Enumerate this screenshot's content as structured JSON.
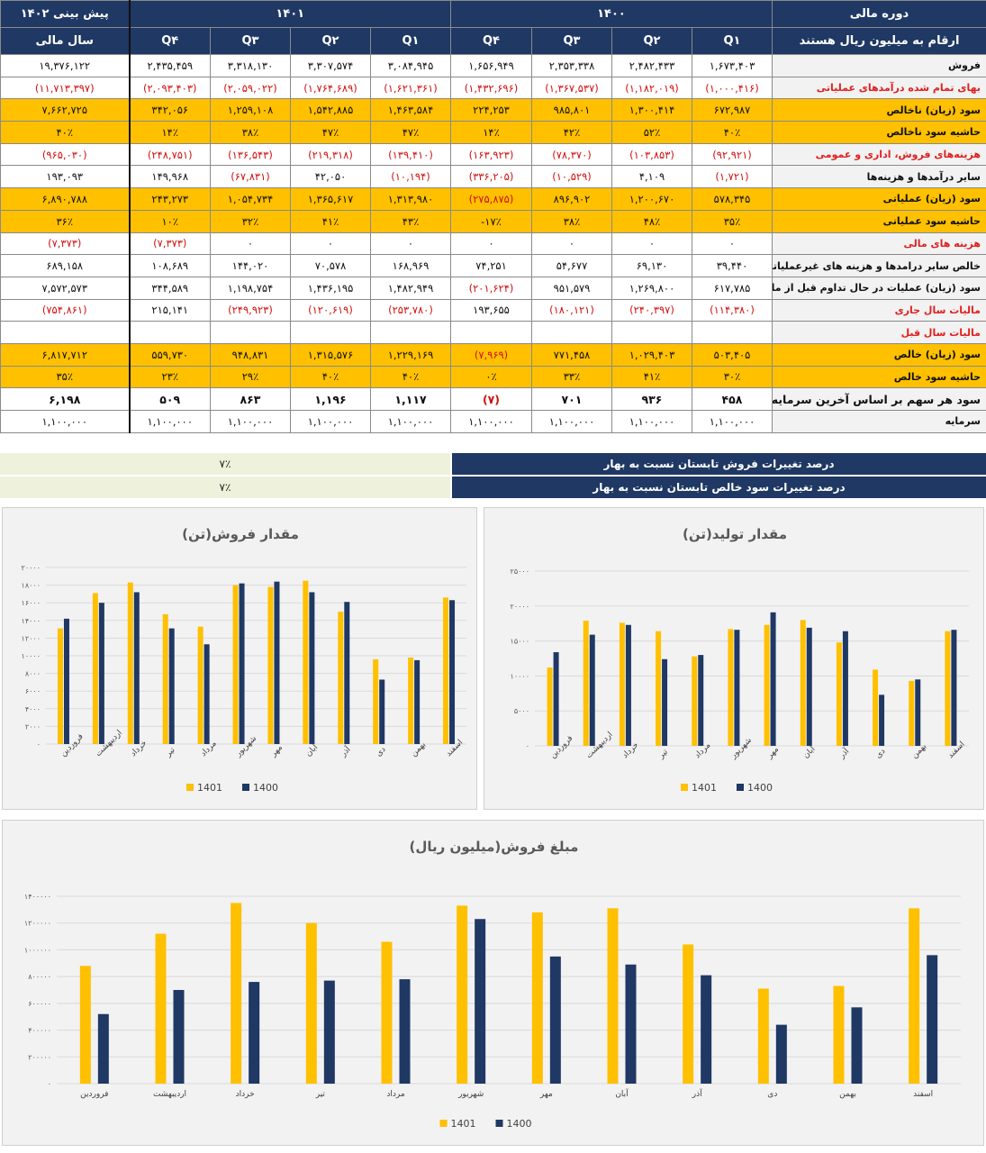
{
  "table": {
    "header_row1": [
      "پیش بینی ۱۴۰۲",
      "۱۴۰۱",
      "۱۴۰۰",
      "دوره مالی"
    ],
    "header_row2": [
      "سال مالی",
      "Q۴",
      "Q۳",
      "Q۲",
      "Q۱",
      "Q۴",
      "Q۳",
      "Q۲",
      "Q۱",
      "ارقام به میلیون ریال هستند"
    ],
    "rows": [
      {
        "label": "فروش",
        "style": "",
        "cells": [
          "۱۹,۳۷۶,۱۲۲",
          "۲,۴۳۵,۴۵۹",
          "۳,۳۱۸,۱۳۰",
          "۳,۳۰۷,۵۷۴",
          "۳,۰۸۴,۹۴۵",
          "۱,۶۵۶,۹۴۹",
          "۲,۳۵۳,۳۳۸",
          "۲,۴۸۲,۴۳۳",
          "۱,۶۷۳,۴۰۳"
        ]
      },
      {
        "label": "بهای تمام شده درآمدهای عملیاتی",
        "style": "redlab",
        "cells": [
          "(۱۱,۷۱۳,۳۹۷)",
          "(۲,۰۹۳,۴۰۳)",
          "(۲,۰۵۹,۰۲۲)",
          "(۱,۷۶۴,۶۸۹)",
          "(۱,۶۲۱,۳۶۱)",
          "(۱,۴۳۲,۶۹۶)",
          "(۱,۳۶۷,۵۳۷)",
          "(۱,۱۸۲,۰۱۹)",
          "(۱,۰۰۰,۴۱۶)"
        ]
      },
      {
        "label": "سود (زیان) ناخالص",
        "style": "gold",
        "cells": [
          "۷,۶۶۲,۷۲۵",
          "۳۴۲,۰۵۶",
          "۱,۲۵۹,۱۰۸",
          "۱,۵۴۲,۸۸۵",
          "۱,۴۶۳,۵۸۴",
          "۲۲۴,۲۵۳",
          "۹۸۵,۸۰۱",
          "۱,۳۰۰,۴۱۴",
          "۶۷۲,۹۸۷"
        ]
      },
      {
        "label": "حاشیه سود ناخالص",
        "style": "gold",
        "cells": [
          "۴۰٪",
          "۱۴٪",
          "۳۸٪",
          "۴۷٪",
          "۴۷٪",
          "۱۴٪",
          "۴۲٪",
          "۵۲٪",
          "۴۰٪"
        ]
      },
      {
        "label": "هزینه‌های فروش، اداری و عمومی",
        "style": "redlab",
        "cells": [
          "(۹۶۵,۰۳۰)",
          "(۲۴۸,۷۵۱)",
          "(۱۳۶,۵۴۳)",
          "(۲۱۹,۳۱۸)",
          "(۱۳۹,۴۱۰)",
          "(۱۶۳,۹۲۳)",
          "(۷۸,۳۷۰)",
          "(۱۰۳,۸۵۳)",
          "(۹۲,۹۲۱)"
        ]
      },
      {
        "label": "سایر درآمدها و هزینه‌ها",
        "style": "",
        "cells": [
          "۱۹۳,۰۹۳",
          "۱۴۹,۹۶۸",
          "(۶۷,۸۳۱)",
          "۴۲,۰۵۰",
          "(۱۰,۱۹۴)",
          "(۳۳۶,۲۰۵)",
          "(۱۰,۵۲۹)",
          "۴,۱۰۹",
          "(۱,۷۲۱)"
        ]
      },
      {
        "label": "سود (زیان) عملیاتی",
        "style": "gold",
        "cells": [
          "۶,۸۹۰,۷۸۸",
          "۲۴۳,۲۷۳",
          "۱,۰۵۴,۷۳۴",
          "۱,۳۶۵,۶۱۷",
          "۱,۳۱۳,۹۸۰",
          "(۲۷۵,۸۷۵)",
          "۸۹۶,۹۰۲",
          "۱,۲۰۰,۶۷۰",
          "۵۷۸,۳۴۵"
        ]
      },
      {
        "label": "حاشیه سود عملیاتی",
        "style": "gold",
        "cells": [
          "۳۶٪",
          "۱۰٪",
          "۳۲٪",
          "۴۱٪",
          "۴۳٪",
          "-۱۷٪",
          "۳۸٪",
          "۴۸٪",
          "۳۵٪"
        ]
      },
      {
        "label": "هزینه های مالی",
        "style": "redlab",
        "cells": [
          "(۷,۳۷۳)",
          "(۷,۳۷۳)",
          "۰",
          "۰",
          "۰",
          "۰",
          "۰",
          "۰",
          "۰"
        ]
      },
      {
        "label": "خالص سایر درامدها و هزینه های غیرعملیاتی",
        "style": "",
        "cells": [
          "۶۸۹,۱۵۸",
          "۱۰۸,۶۸۹",
          "۱۴۴,۰۲۰",
          "۷۰,۵۷۸",
          "۱۶۸,۹۶۹",
          "۷۴,۲۵۱",
          "۵۴,۶۷۷",
          "۶۹,۱۳۰",
          "۳۹,۴۴۰"
        ]
      },
      {
        "label": "سود (زیان) عملیات در حال تداوم قبل از مالیات",
        "style": "",
        "cells": [
          "۷,۵۷۲,۵۷۳",
          "۳۴۴,۵۸۹",
          "۱,۱۹۸,۷۵۴",
          "۱,۴۳۶,۱۹۵",
          "۱,۴۸۲,۹۴۹",
          "(۲۰۱,۶۲۴)",
          "۹۵۱,۵۷۹",
          "۱,۲۶۹,۸۰۰",
          "۶۱۷,۷۸۵"
        ]
      },
      {
        "label": "مالیات سال جاری",
        "style": "redlab",
        "cells": [
          "(۷۵۴,۸۶۱)",
          "۲۱۵,۱۴۱",
          "(۲۴۹,۹۲۳)",
          "(۱۲۰,۶۱۹)",
          "(۲۵۳,۷۸۰)",
          "۱۹۳,۶۵۵",
          "(۱۸۰,۱۲۱)",
          "(۲۴۰,۳۹۷)",
          "(۱۱۴,۳۸۰)"
        ]
      },
      {
        "label": "مالیات سال قبل",
        "style": "redlab",
        "cells": [
          "",
          "",
          "",
          "",
          "",
          "",
          "",
          "",
          ""
        ]
      },
      {
        "label": "سود (زیان) خالص",
        "style": "gold",
        "cells": [
          "۶,۸۱۷,۷۱۲",
          "۵۵۹,۷۳۰",
          "۹۴۸,۸۳۱",
          "۱,۳۱۵,۵۷۶",
          "۱,۲۲۹,۱۶۹",
          "(۷,۹۶۹)",
          "۷۷۱,۴۵۸",
          "۱,۰۲۹,۴۰۳",
          "۵۰۳,۴۰۵"
        ]
      },
      {
        "label": "حاشیه سود خالص",
        "style": "gold",
        "cells": [
          "۳۵٪",
          "۲۳٪",
          "۲۹٪",
          "۴۰٪",
          "۴۰٪",
          "۰٪",
          "۳۳٪",
          "۴۱٪",
          "۳۰٪"
        ]
      },
      {
        "label": "سود هر سهم بر اساس آخرین سرمایه",
        "style": "bold",
        "cells": [
          "۶,۱۹۸",
          "۵۰۹",
          "۸۶۳",
          "۱,۱۹۶",
          "۱,۱۱۷",
          "(۷)",
          "۷۰۱",
          "۹۳۶",
          "۴۵۸"
        ]
      },
      {
        "label": "سرمایه",
        "style": "",
        "cells": [
          "۱,۱۰۰,۰۰۰",
          "۱,۱۰۰,۰۰۰",
          "۱,۱۰۰,۰۰۰",
          "۱,۱۰۰,۰۰۰",
          "۱,۱۰۰,۰۰۰",
          "۱,۱۰۰,۰۰۰",
          "۱,۱۰۰,۰۰۰",
          "۱,۱۰۰,۰۰۰",
          "۱,۱۰۰,۰۰۰"
        ]
      }
    ]
  },
  "changes": [
    {
      "label": "درصد تغییرات فروش تابستان نسبت به بهار",
      "value": "۷٪"
    },
    {
      "label": "درصد تغییرات سود خالص تابستان نسبت به بهار",
      "value": "۷٪"
    }
  ],
  "colors": {
    "series_1401": "#ffc000",
    "series_1400": "#1f3864",
    "header": "#1f3864",
    "highlight": "#ffc000",
    "negative": "#d01010"
  },
  "chart_data": [
    {
      "id": "sales_qty",
      "type": "bar",
      "title": "مقدار فروش(تن)",
      "categories": [
        "فروردین",
        "اردیبهشت",
        "خرداد",
        "تیر",
        "مرداد",
        "شهریور",
        "مهر",
        "آبان",
        "آذر",
        "دی",
        "بهمن",
        "اسفند"
      ],
      "series": [
        {
          "name": "1401",
          "values": [
            13100,
            17100,
            18300,
            14700,
            13300,
            18000,
            17800,
            18500,
            15000,
            9600,
            9800,
            16600
          ]
        },
        {
          "name": "1400",
          "values": [
            14200,
            16000,
            17200,
            13100,
            11300,
            18200,
            18400,
            17200,
            16100,
            7300,
            9500,
            16300
          ]
        }
      ],
      "ylim": [
        0,
        20000
      ],
      "yticks": [
        "۰",
        "۲۰۰۰",
        "۴۰۰۰",
        "۶۰۰۰",
        "۸۰۰۰",
        "۱۰۰۰۰",
        "۱۲۰۰۰",
        "۱۴۰۰۰",
        "۱۶۰۰۰",
        "۱۸۰۰۰",
        "۲۰۰۰۰"
      ],
      "grid": true,
      "legend": "bottom"
    },
    {
      "id": "production_qty",
      "type": "bar",
      "title": "مقدار تولید(تن)",
      "categories": [
        "فروردین",
        "اردیبهشت",
        "خرداد",
        "تیر",
        "مرداد",
        "شهریور",
        "مهر",
        "آبان",
        "آذر",
        "دی",
        "بهمن",
        "اسفند"
      ],
      "series": [
        {
          "name": "1401",
          "values": [
            11200,
            17900,
            17600,
            16400,
            12800,
            16700,
            17300,
            18000,
            14800,
            10900,
            9300,
            16400
          ]
        },
        {
          "name": "1400",
          "values": [
            13400,
            15900,
            17300,
            12400,
            13000,
            16600,
            19100,
            16900,
            16400,
            7300,
            9500,
            16600
          ]
        }
      ],
      "ylim": [
        0,
        25000
      ],
      "yticks": [
        "۰",
        "۵۰۰۰",
        "۱۰۰۰۰",
        "۱۵۰۰۰",
        "۲۰۰۰۰",
        "۲۵۰۰۰"
      ],
      "grid": true,
      "legend": "bottom"
    },
    {
      "id": "sales_amount",
      "type": "bar",
      "title": "مبلغ فروش(میلیون ریال)",
      "categories": [
        "فروردین",
        "اردیبهشت",
        "خرداد",
        "تیر",
        "مرداد",
        "شهریور",
        "مهر",
        "آبان",
        "آذر",
        "دی",
        "بهمن",
        "اسفند"
      ],
      "series": [
        {
          "name": "1401",
          "values": [
            880000,
            1120000,
            1350000,
            1200000,
            1060000,
            1330000,
            1280000,
            1310000,
            1040000,
            710000,
            730000,
            1310000
          ]
        },
        {
          "name": "1400",
          "values": [
            520000,
            700000,
            760000,
            770000,
            780000,
            1230000,
            950000,
            890000,
            810000,
            440000,
            570000,
            960000
          ]
        }
      ],
      "ylim": [
        0,
        1400000
      ],
      "yticks": [
        "۰",
        "۲۰۰۰۰۰",
        "۴۰۰۰۰۰",
        "۶۰۰۰۰۰",
        "۸۰۰۰۰۰",
        "۱۰۰۰۰۰۰",
        "۱۲۰۰۰۰۰",
        "۱۴۰۰۰۰۰"
      ],
      "grid": true,
      "legend": "bottom"
    }
  ]
}
